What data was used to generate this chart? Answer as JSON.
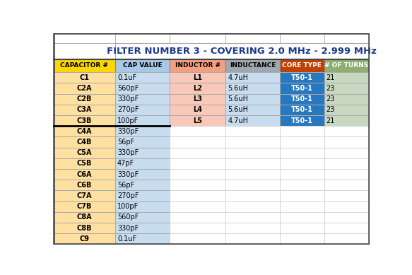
{
  "title": "FILTER NUMBER 3 - COVERING 2.0 MHz - 2.999 MHz",
  "title_color": "#1B3A8C",
  "col_headers": [
    "CAPACITOR #",
    "CAP VALUE",
    "INDUCTOR #",
    "INDUCTANCE",
    "CORE TYPE",
    "# OF TURNS"
  ],
  "header_bg_colors": [
    "#FFD700",
    "#A8C8E8",
    "#F4A080",
    "#A0A8B0",
    "#C04000",
    "#8FAF70"
  ],
  "header_fg_colors": [
    "#000000",
    "#000000",
    "#000000",
    "#000000",
    "#FFFFFF",
    "#FFFFFF"
  ],
  "cap_data": [
    [
      "C1",
      "0.1uF"
    ],
    [
      "C2A",
      "560pF"
    ],
    [
      "C2B",
      "330pF"
    ],
    [
      "C3A",
      "270pF"
    ],
    [
      "C3B",
      "100pF"
    ],
    [
      "C4A",
      "330pF"
    ],
    [
      "C4B",
      "56pF"
    ],
    [
      "C5A",
      "330pF"
    ],
    [
      "C5B",
      "47pF"
    ],
    [
      "C6A",
      "330pF"
    ],
    [
      "C6B",
      "56pF"
    ],
    [
      "C7A",
      "270pF"
    ],
    [
      "C7B",
      "100pF"
    ],
    [
      "C8A",
      "560pF"
    ],
    [
      "C8B",
      "330pF"
    ],
    [
      "C9",
      "0.1uF"
    ]
  ],
  "ind_data": [
    [
      "L1",
      "4.7uH",
      "T50-1",
      "21"
    ],
    [
      "L2",
      "5.6uH",
      "T50-1",
      "23"
    ],
    [
      "L3",
      "5.6uH",
      "T50-1",
      "23"
    ],
    [
      "L4",
      "5.6uH",
      "T50-1",
      "23"
    ],
    [
      "L5",
      "4.7uH",
      "T50-1",
      "21"
    ]
  ],
  "cap_col_bg": "#FFE0A0",
  "cap_val_bg": "#C8DCF0",
  "ind_num_bg": "#F8C8B8",
  "inductance_bg": "#C8DCF0",
  "core_type_bg": "#2878C0",
  "turns_bg": "#C8D8C0",
  "empty_bg": "#FFFFFF",
  "title_bg": "#FFFFFF",
  "top_empty_bg": "#FFFFFF",
  "figsize": [
    5.83,
    3.89
  ],
  "dpi": 100
}
